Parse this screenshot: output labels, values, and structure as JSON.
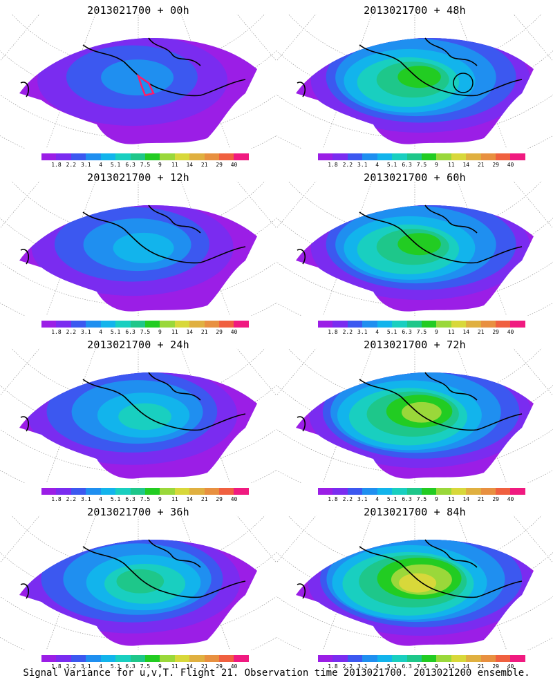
{
  "panels": [
    {
      "title": "2013021700 + 00h",
      "intensity": 0.15,
      "marker": "polygon"
    },
    {
      "title": "2013021700 + 48h",
      "intensity": 0.55,
      "marker": "circle"
    },
    {
      "title": "2013021700 + 12h",
      "intensity": 0.25,
      "marker": ""
    },
    {
      "title": "2013021700 + 60h",
      "intensity": 0.6,
      "marker": ""
    },
    {
      "title": "2013021700 + 24h",
      "intensity": 0.32,
      "marker": ""
    },
    {
      "title": "2013021700 + 72h",
      "intensity": 0.72,
      "marker": ""
    },
    {
      "title": "2013021700 + 36h",
      "intensity": 0.4,
      "marker": ""
    },
    {
      "title": "2013021700 + 84h",
      "intensity": 0.78,
      "marker": ""
    }
  ],
  "colorbar": {
    "labels": [
      "1.8",
      "2.2",
      "3.1",
      "4",
      "5.1",
      "6.3",
      "7.5",
      "9",
      "11",
      "14",
      "21",
      "29",
      "40"
    ],
    "colors": [
      "#9b1ee6",
      "#7a2cf0",
      "#3c58f0",
      "#1f8ff0",
      "#12b4ec",
      "#19cfc0",
      "#1ec78a",
      "#22cc22",
      "#9ad83a",
      "#d8d83a",
      "#e0b040",
      "#e89040",
      "#f06040",
      "#f01a80"
    ]
  },
  "caption": "Signal Variance for u,v,T. Flight 21. Observation time 2013021700. 2013021200 ensemble."
}
